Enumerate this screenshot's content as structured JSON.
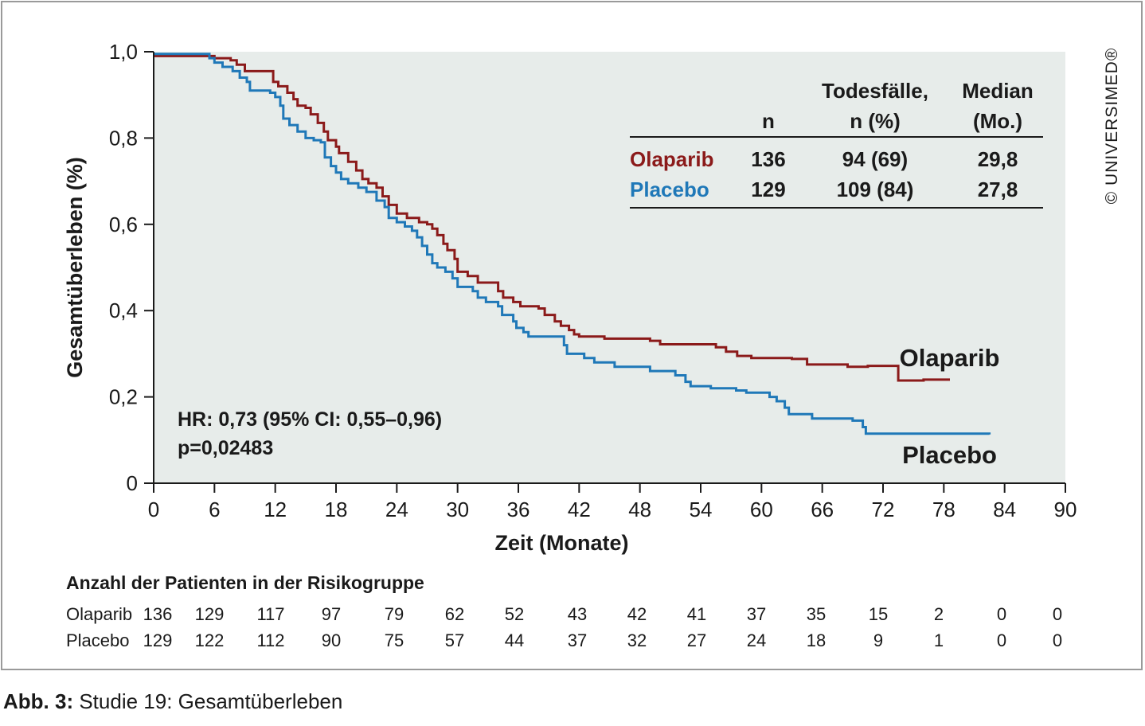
{
  "caption": {
    "label": "Abb. 3:",
    "text": "Studie 19: Gesamtüberleben"
  },
  "copyright": "© UNIVERSIMED®",
  "colors": {
    "olaparib": "#8b1a1a",
    "placebo": "#1f78b8",
    "plot_bg": "#e7ecea",
    "axis": "#1a1a1a"
  },
  "chart_data": {
    "type": "line",
    "title": "",
    "xlabel": "Zeit (Monate)",
    "ylabel": "Gesamtüberleben (%)",
    "xlim": [
      0,
      90
    ],
    "ylim": [
      0,
      1.0
    ],
    "x_ticks": [
      0,
      6,
      12,
      18,
      24,
      30,
      36,
      42,
      48,
      54,
      60,
      66,
      72,
      78,
      84,
      90
    ],
    "y_ticks": [
      {
        "value": 0,
        "label": "0"
      },
      {
        "value": 0.2,
        "label": "0,2"
      },
      {
        "value": 0.4,
        "label": "0,4"
      },
      {
        "value": 0.6,
        "label": "0,6"
      },
      {
        "value": 0.8,
        "label": "0,8"
      },
      {
        "value": 1.0,
        "label": "1,0"
      }
    ],
    "grid": false,
    "step": true,
    "series": [
      {
        "name": "Olaparib",
        "color_key": "olaparib",
        "points": [
          [
            0,
            0.99
          ],
          [
            2,
            0.99
          ],
          [
            5.6,
            0.99
          ],
          [
            6,
            0.985
          ],
          [
            7.6,
            0.98
          ],
          [
            8.2,
            0.97
          ],
          [
            9,
            0.955
          ],
          [
            11.5,
            0.955
          ],
          [
            11.8,
            0.93
          ],
          [
            12.3,
            0.92
          ],
          [
            13.2,
            0.905
          ],
          [
            13.8,
            0.89
          ],
          [
            14.2,
            0.875
          ],
          [
            15,
            0.87
          ],
          [
            15.5,
            0.855
          ],
          [
            16.2,
            0.835
          ],
          [
            16.8,
            0.815
          ],
          [
            17.2,
            0.795
          ],
          [
            18,
            0.78
          ],
          [
            18.3,
            0.765
          ],
          [
            19.2,
            0.745
          ],
          [
            20,
            0.725
          ],
          [
            20.6,
            0.705
          ],
          [
            21.2,
            0.695
          ],
          [
            22,
            0.685
          ],
          [
            22.6,
            0.665
          ],
          [
            23.2,
            0.645
          ],
          [
            24,
            0.625
          ],
          [
            25,
            0.615
          ],
          [
            26.2,
            0.605
          ],
          [
            27,
            0.6
          ],
          [
            27.5,
            0.59
          ],
          [
            28,
            0.575
          ],
          [
            28.6,
            0.555
          ],
          [
            29,
            0.54
          ],
          [
            29.7,
            0.52
          ],
          [
            30,
            0.49
          ],
          [
            31,
            0.48
          ],
          [
            32,
            0.465
          ],
          [
            34,
            0.445
          ],
          [
            34.5,
            0.43
          ],
          [
            35.5,
            0.42
          ],
          [
            36.2,
            0.41
          ],
          [
            38,
            0.405
          ],
          [
            38.6,
            0.39
          ],
          [
            39.6,
            0.375
          ],
          [
            40.2,
            0.365
          ],
          [
            41,
            0.355
          ],
          [
            41.5,
            0.345
          ],
          [
            42,
            0.34
          ],
          [
            44.5,
            0.335
          ],
          [
            49,
            0.33
          ],
          [
            50,
            0.322
          ],
          [
            55.5,
            0.315
          ],
          [
            56.5,
            0.305
          ],
          [
            57.6,
            0.295
          ],
          [
            59,
            0.29
          ],
          [
            63,
            0.288
          ],
          [
            64.5,
            0.275
          ],
          [
            68.5,
            0.27
          ],
          [
            70.5,
            0.272
          ],
          [
            73.5,
            0.238
          ],
          [
            76,
            0.24
          ],
          [
            78.6,
            0.24
          ]
        ]
      },
      {
        "name": "Placebo",
        "color_key": "placebo",
        "points": [
          [
            0,
            0.995
          ],
          [
            3.5,
            0.995
          ],
          [
            5.5,
            0.985
          ],
          [
            6,
            0.975
          ],
          [
            6.8,
            0.965
          ],
          [
            7.8,
            0.955
          ],
          [
            8.5,
            0.94
          ],
          [
            9.2,
            0.93
          ],
          [
            9.5,
            0.91
          ],
          [
            11.5,
            0.905
          ],
          [
            12,
            0.895
          ],
          [
            12.5,
            0.875
          ],
          [
            12.8,
            0.845
          ],
          [
            13.4,
            0.83
          ],
          [
            14.2,
            0.815
          ],
          [
            15,
            0.8
          ],
          [
            15.8,
            0.795
          ],
          [
            16.5,
            0.79
          ],
          [
            16.9,
            0.755
          ],
          [
            17.5,
            0.735
          ],
          [
            18,
            0.72
          ],
          [
            18.5,
            0.705
          ],
          [
            19.2,
            0.695
          ],
          [
            20.2,
            0.685
          ],
          [
            21,
            0.675
          ],
          [
            22,
            0.655
          ],
          [
            22.8,
            0.64
          ],
          [
            23.2,
            0.615
          ],
          [
            24,
            0.605
          ],
          [
            24.8,
            0.595
          ],
          [
            25.5,
            0.585
          ],
          [
            26,
            0.57
          ],
          [
            26.5,
            0.55
          ],
          [
            27,
            0.53
          ],
          [
            27.5,
            0.51
          ],
          [
            28,
            0.5
          ],
          [
            28.8,
            0.49
          ],
          [
            29.5,
            0.475
          ],
          [
            30,
            0.455
          ],
          [
            31.5,
            0.445
          ],
          [
            32,
            0.43
          ],
          [
            32.8,
            0.42
          ],
          [
            34,
            0.41
          ],
          [
            34.4,
            0.39
          ],
          [
            35.5,
            0.375
          ],
          [
            35.8,
            0.36
          ],
          [
            36.5,
            0.35
          ],
          [
            37,
            0.34
          ],
          [
            40.5,
            0.32
          ],
          [
            40.8,
            0.3
          ],
          [
            42.5,
            0.29
          ],
          [
            43.5,
            0.28
          ],
          [
            45.5,
            0.27
          ],
          [
            49,
            0.26
          ],
          [
            51.5,
            0.25
          ],
          [
            52.5,
            0.235
          ],
          [
            53,
            0.225
          ],
          [
            55,
            0.22
          ],
          [
            57.5,
            0.215
          ],
          [
            58.5,
            0.21
          ],
          [
            60.8,
            0.2
          ],
          [
            61.5,
            0.19
          ],
          [
            62.3,
            0.175
          ],
          [
            62.7,
            0.16
          ],
          [
            65,
            0.15
          ],
          [
            69,
            0.145
          ],
          [
            70,
            0.13
          ],
          [
            70.3,
            0.115
          ],
          [
            76,
            0.115
          ],
          [
            82.5,
            0.113
          ]
        ]
      }
    ],
    "series_labels": [
      {
        "name": "Olaparib",
        "x": 78.8,
        "y": 0.29
      },
      {
        "name": "Placebo",
        "x": 78.8,
        "y": 0.065
      }
    ],
    "stats_annotation": [
      "HR: 0,73 (95% CI: 0,55–0,96)",
      "p=0,02483"
    ],
    "summary_table": {
      "headers": [
        [
          "",
          "n",
          "Todesfälle,",
          "Median"
        ],
        [
          "",
          "",
          "n (%)",
          "(Mo.)"
        ]
      ],
      "header_lines": [
        [
          "Todesfälle,",
          "n (%)"
        ],
        [
          "Median",
          "(Mo.)"
        ]
      ],
      "col_n": "n",
      "rows": [
        {
          "arm": "Olaparib",
          "color_key": "olaparib",
          "n": "136",
          "deaths": "94 (69)",
          "median": "29,8"
        },
        {
          "arm": "Placebo",
          "color_key": "placebo",
          "n": "129",
          "deaths": "109 (84)",
          "median": "27,8"
        }
      ]
    },
    "risk_table": {
      "title": "Anzahl der Patienten in der Risikogruppe",
      "time_points": [
        0,
        6,
        12,
        18,
        24,
        30,
        36,
        42,
        48,
        54,
        60,
        66,
        72,
        78,
        84,
        90
      ],
      "rows": [
        {
          "arm": "Olaparib",
          "values": [
            "136",
            "129",
            "117",
            "97",
            "79",
            "62",
            "52",
            "43",
            "42",
            "41",
            "37",
            "35",
            "15",
            "2",
            "0",
            "0"
          ]
        },
        {
          "arm": "Placebo",
          "values": [
            "129",
            "122",
            "112",
            "90",
            "75",
            "57",
            "44",
            "37",
            "32",
            "27",
            "24",
            "18",
            "9",
            "1",
            "0",
            "0"
          ]
        }
      ]
    }
  }
}
